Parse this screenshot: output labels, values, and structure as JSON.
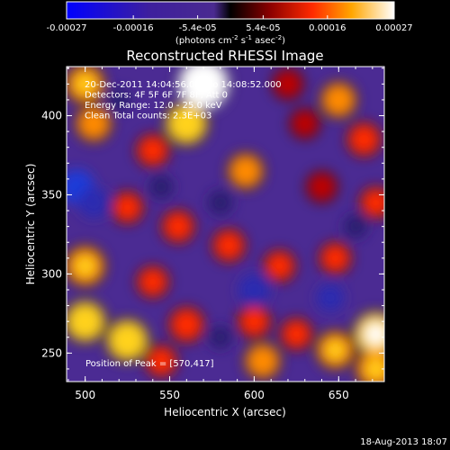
{
  "chart_data": {
    "type": "heatmap",
    "title": "Reconstructed RHESSI Image",
    "xlabel": "Heliocentric X (arcsec)",
    "ylabel": "Heliocentric Y (arcsec)",
    "xlim": [
      489,
      677
    ],
    "ylim": [
      232,
      431
    ],
    "x_ticks": [
      500,
      550,
      600,
      650
    ],
    "y_ticks": [
      250,
      300,
      350,
      400
    ],
    "colorbar": {
      "range": [
        -0.00027,
        0.00027
      ],
      "tick_labels": [
        "-0.00027",
        "-0.00016",
        "-5.4e-05",
        "5.4e-05",
        "0.00016",
        "0.00027"
      ],
      "tick_values": [
        -0.00027,
        -0.00016,
        -5.4e-05,
        5.4e-05,
        0.00016,
        0.00027
      ],
      "units_label_parts": [
        "(photons cm",
        "-2",
        " s",
        "-1",
        " asec",
        "-2",
        ")"
      ]
    },
    "annotations": [
      "20-Dec-2011 14:04:56.000 to 14:08:52.000",
      "Detectors: 4F 5F 6F 7F 8F, Att 0",
      "Energy Range: 12.0 - 25.0 keV",
      "Clean    Total counts: 2.3E+03"
    ],
    "peak_label": "Position of Peak = [570,417]",
    "peak": [
      570,
      417
    ],
    "blobs": [
      {
        "x": 570,
        "y": 420,
        "value": 0.00027
      },
      {
        "x": 560,
        "y": 395,
        "value": 0.00018
      },
      {
        "x": 500,
        "y": 420,
        "value": 0.00015
      },
      {
        "x": 505,
        "y": 395,
        "value": 0.00012
      },
      {
        "x": 650,
        "y": 410,
        "value": 0.00012
      },
      {
        "x": 665,
        "y": 385,
        "value": 0.0001
      },
      {
        "x": 595,
        "y": 365,
        "value": 0.00012
      },
      {
        "x": 540,
        "y": 378,
        "value": 9e-05
      },
      {
        "x": 525,
        "y": 342,
        "value": 8e-05
      },
      {
        "x": 555,
        "y": 330,
        "value": 9e-05
      },
      {
        "x": 640,
        "y": 355,
        "value": 7e-05
      },
      {
        "x": 672,
        "y": 345,
        "value": 8e-05
      },
      {
        "x": 585,
        "y": 318,
        "value": 9e-05
      },
      {
        "x": 615,
        "y": 305,
        "value": 8e-05
      },
      {
        "x": 648,
        "y": 310,
        "value": 8e-05
      },
      {
        "x": 500,
        "y": 305,
        "value": 0.00016
      },
      {
        "x": 540,
        "y": 295,
        "value": 8e-05
      },
      {
        "x": 500,
        "y": 270,
        "value": 0.00017
      },
      {
        "x": 525,
        "y": 258,
        "value": 0.00018
      },
      {
        "x": 560,
        "y": 268,
        "value": 0.00011
      },
      {
        "x": 600,
        "y": 270,
        "value": 9e-05
      },
      {
        "x": 605,
        "y": 245,
        "value": 0.00012
      },
      {
        "x": 625,
        "y": 262,
        "value": 8e-05
      },
      {
        "x": 648,
        "y": 252,
        "value": 0.00014
      },
      {
        "x": 672,
        "y": 262,
        "value": 0.0002
      },
      {
        "x": 672,
        "y": 240,
        "value": 0.00016
      },
      {
        "x": 545,
        "y": 245,
        "value": 8e-05
      },
      {
        "x": 620,
        "y": 420,
        "value": 7e-05
      },
      {
        "x": 630,
        "y": 395,
        "value": 6e-05
      },
      {
        "x": 495,
        "y": 355,
        "value": -0.00016
      },
      {
        "x": 505,
        "y": 345,
        "value": -0.00012
      },
      {
        "x": 600,
        "y": 290,
        "value": -0.00013
      },
      {
        "x": 580,
        "y": 345,
        "value": -7e-05
      },
      {
        "x": 645,
        "y": 285,
        "value": -9e-05
      },
      {
        "x": 545,
        "y": 355,
        "value": -6e-05
      },
      {
        "x": 660,
        "y": 330,
        "value": -6e-05
      },
      {
        "x": 520,
        "y": 410,
        "value": -5e-05
      },
      {
        "x": 580,
        "y": 260,
        "value": -5e-05
      }
    ]
  },
  "footer": {
    "timestamp": "18-Aug-2013 18:07"
  }
}
